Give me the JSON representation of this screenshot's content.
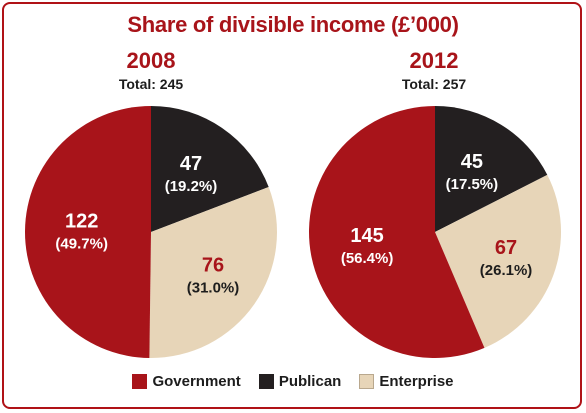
{
  "chart_data": {
    "type": "pie",
    "title": "Share of divisible income (£’000)",
    "series_names": [
      "Government",
      "Publican",
      "Enterprise"
    ],
    "colors": {
      "Government": "#a8141a",
      "Publican": "#231f20",
      "Enterprise": "#e7d5b8"
    },
    "charts": [
      {
        "year": "2008",
        "total_label": "Total: 245",
        "slices": [
          {
            "name": "Publican",
            "value": 47,
            "value_label": "47",
            "pct_label": "(19.2%)"
          },
          {
            "name": "Enterprise",
            "value": 76,
            "value_label": "76",
            "pct_label": "(31.0%)"
          },
          {
            "name": "Government",
            "value": 122,
            "value_label": "122",
            "pct_label": "(49.7%)"
          }
        ]
      },
      {
        "year": "2012",
        "total_label": "Total: 257",
        "slices": [
          {
            "name": "Publican",
            "value": 45,
            "value_label": "45",
            "pct_label": "(17.5%)"
          },
          {
            "name": "Enterprise",
            "value": 67,
            "value_label": "67",
            "pct_label": "(26.1%)"
          },
          {
            "name": "Government",
            "value": 145,
            "value_label": "145",
            "pct_label": "(56.4%)"
          }
        ]
      }
    ],
    "legend": [
      "Government",
      "Publican",
      "Enterprise"
    ],
    "legend_position": "bottom"
  }
}
